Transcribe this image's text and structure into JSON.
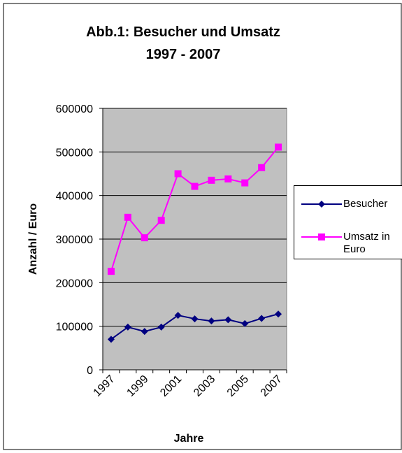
{
  "chart_data": {
    "type": "line",
    "title": [
      "Abb.1: Besucher und Umsatz",
      "1997 - 2007"
    ],
    "x_label": "Jahre",
    "y_label": "Anzahl / Euro",
    "categories": [
      "1997",
      null,
      "1999",
      null,
      "2001",
      null,
      "2003",
      null,
      "2005",
      null,
      "2007"
    ],
    "series": [
      {
        "name": "Besucher",
        "color": "#000080",
        "marker": "diamond",
        "values": [
          70000,
          98000,
          88000,
          98000,
          125000,
          117000,
          112000,
          115000,
          106000,
          118000,
          128000
        ]
      },
      {
        "name": "Umsatz in Euro",
        "color": "#ff00ff",
        "marker": "square",
        "values": [
          226000,
          350000,
          303000,
          343000,
          450000,
          421000,
          435000,
          438000,
          429000,
          464000,
          511000
        ]
      }
    ],
    "ylim": [
      0,
      600000
    ],
    "yticks": [
      0,
      100000,
      200000,
      300000,
      400000,
      500000,
      600000
    ],
    "grid": true,
    "legend": "right"
  }
}
